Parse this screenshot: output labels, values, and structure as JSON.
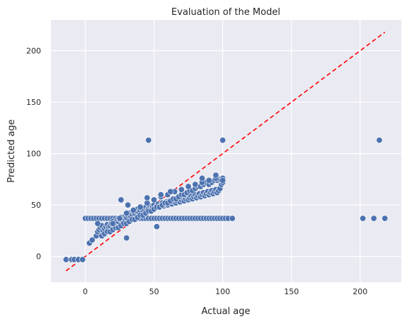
{
  "chart_data": {
    "type": "scatter",
    "title": "Evaluation of the Model",
    "xlabel": "Actual age",
    "ylabel": "Predicted age",
    "xlim": [
      -25,
      230
    ],
    "ylim": [
      -25,
      230
    ],
    "x_ticks": [
      0,
      50,
      100,
      150,
      200
    ],
    "y_ticks": [
      0,
      50,
      100,
      150,
      200
    ],
    "grid": true,
    "legend": "none",
    "background_color": "#eaeaf2",
    "grid_color": "#ffffff",
    "marker_color": "#4c72b0",
    "reference_line": {
      "style": "dashed",
      "color": "#ff0000",
      "x": [
        -14,
        218
      ],
      "y": [
        -14,
        218
      ]
    },
    "points": {
      "x": [
        -14,
        -10,
        -8,
        -5,
        -2,
        0,
        2,
        4,
        6,
        8,
        10,
        12,
        14,
        16,
        18,
        20,
        22,
        24,
        26,
        28,
        30,
        32,
        34,
        36,
        38,
        40,
        42,
        44,
        46,
        48,
        50,
        52,
        54,
        56,
        58,
        60,
        62,
        64,
        66,
        68,
        70,
        72,
        74,
        76,
        78,
        80,
        82,
        84,
        86,
        88,
        90,
        92,
        94,
        96,
        98,
        100,
        102,
        104,
        107,
        3,
        5,
        8,
        9,
        10,
        11,
        12,
        13,
        14,
        15,
        16,
        17,
        18,
        19,
        20,
        21,
        22,
        23,
        24,
        25,
        26,
        27,
        28,
        29,
        30,
        31,
        32,
        33,
        34,
        35,
        36,
        37,
        38,
        39,
        40,
        41,
        42,
        43,
        44,
        45,
        46,
        47,
        48,
        49,
        50,
        51,
        52,
        53,
        54,
        55,
        56,
        57,
        58,
        59,
        60,
        61,
        62,
        63,
        64,
        65,
        66,
        67,
        68,
        69,
        70,
        71,
        72,
        73,
        74,
        75,
        76,
        77,
        78,
        79,
        80,
        81,
        82,
        83,
        84,
        85,
        86,
        87,
        88,
        89,
        90,
        91,
        92,
        93,
        94,
        95,
        96,
        97,
        98,
        99,
        100,
        12,
        14,
        16,
        18,
        20,
        22,
        24,
        26,
        28,
        30,
        32,
        34,
        36,
        38,
        40,
        42,
        44,
        46,
        48,
        50,
        52,
        54,
        56,
        58,
        60,
        62,
        64,
        66,
        68,
        70,
        72,
        74,
        76,
        78,
        80,
        82,
        84,
        86,
        88,
        90,
        92,
        94,
        96,
        98,
        100,
        20,
        25,
        30,
        35,
        40,
        45,
        50,
        55,
        60,
        65,
        70,
        75,
        80,
        85,
        90,
        95,
        100,
        26,
        31,
        45,
        55,
        62,
        85,
        95,
        30,
        52,
        9,
        46,
        100,
        214,
        202,
        210,
        218
      ],
      "y": [
        -3,
        -3,
        -3,
        -3,
        -3,
        37,
        37,
        37,
        37,
        37,
        37,
        37,
        37,
        37,
        37,
        37,
        37,
        37,
        37,
        37,
        37,
        37,
        37,
        37,
        37,
        37,
        37,
        37,
        37,
        37,
        37,
        37,
        37,
        37,
        37,
        37,
        37,
        37,
        37,
        37,
        37,
        37,
        37,
        37,
        37,
        37,
        37,
        37,
        37,
        37,
        37,
        37,
        37,
        37,
        37,
        37,
        37,
        37,
        37,
        13,
        16,
        20,
        24,
        26,
        28,
        30,
        25,
        27,
        29,
        31,
        28,
        30,
        32,
        34,
        31,
        33,
        35,
        34,
        36,
        38,
        35,
        37,
        39,
        38,
        40,
        42,
        39,
        41,
        43,
        42,
        44,
        46,
        43,
        45,
        47,
        44,
        46,
        48,
        45,
        47,
        49,
        46,
        48,
        50,
        47,
        49,
        51,
        48,
        50,
        52,
        49,
        51,
        53,
        50,
        52,
        54,
        51,
        53,
        55,
        52,
        54,
        56,
        53,
        55,
        57,
        54,
        56,
        58,
        55,
        57,
        59,
        56,
        58,
        60,
        57,
        59,
        61,
        58,
        60,
        62,
        59,
        61,
        63,
        60,
        62,
        64,
        61,
        63,
        65,
        62,
        64,
        66,
        70,
        72,
        20,
        22,
        24,
        24,
        26,
        28,
        28,
        30,
        32,
        32,
        34,
        36,
        36,
        38,
        40,
        40,
        42,
        44,
        44,
        46,
        48,
        48,
        50,
        52,
        52,
        54,
        56,
        56,
        58,
        60,
        60,
        62,
        64,
        64,
        66,
        68,
        68,
        70,
        72,
        70,
        72,
        74,
        74,
        75,
        76,
        32,
        37,
        42,
        45,
        48,
        52,
        55,
        58,
        60,
        63,
        65,
        68,
        70,
        72,
        74,
        76,
        74,
        55,
        50,
        57,
        60,
        63,
        76,
        79,
        18,
        29,
        32,
        113,
        113,
        113,
        37,
        37,
        37
      ]
    }
  }
}
